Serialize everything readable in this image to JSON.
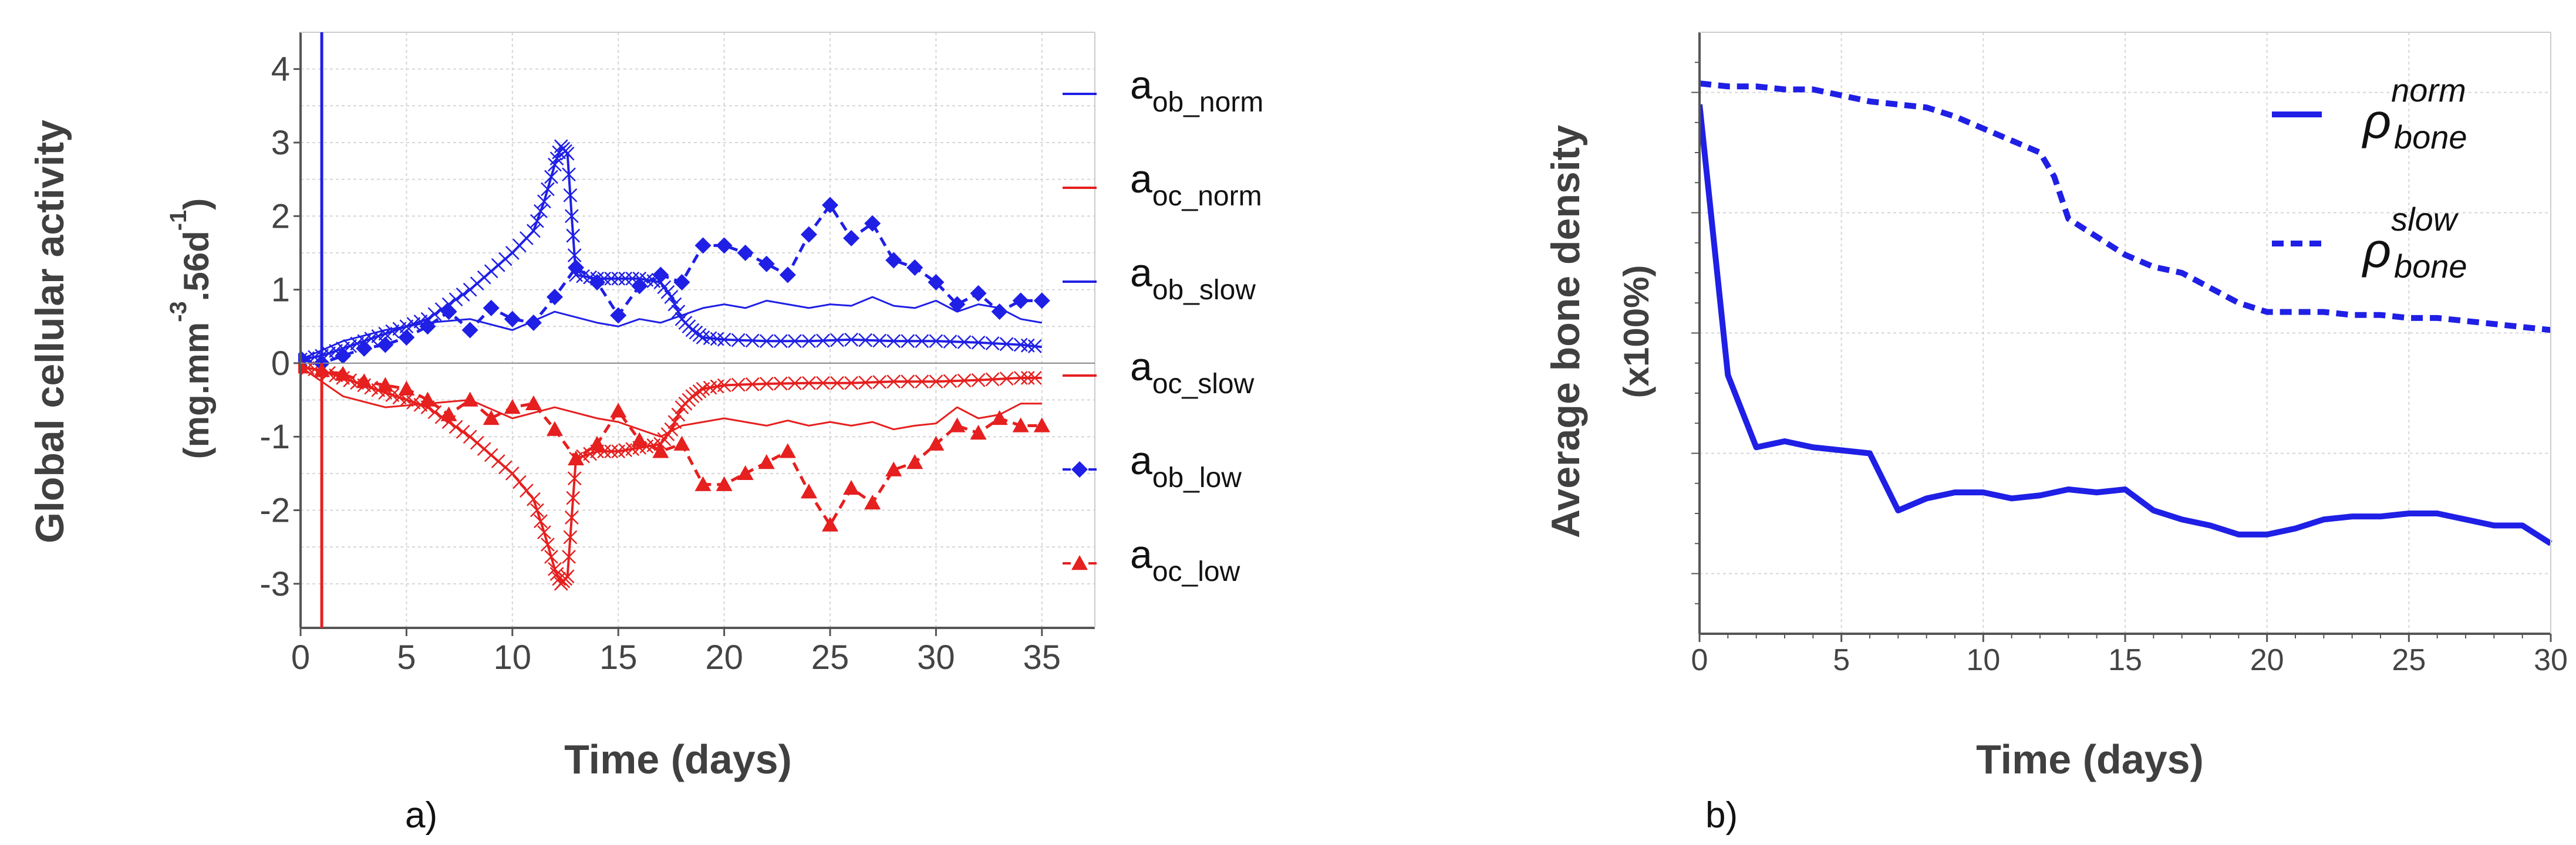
{
  "chart_data": [
    {
      "type": "line",
      "panel_label": "a)",
      "xlabel": "Time (days)",
      "ylabel": "Global cellular activity",
      "ylabel_units": "(mg.mm-3.56d-1)",
      "ylabel_units_parts": {
        "open": "(mg.mm",
        "exp1": "-3",
        "mid": ".56d",
        "exp2": "-1",
        "close": ")"
      },
      "xlim": [
        0,
        37.5
      ],
      "ylim": [
        -3.6,
        4.5
      ],
      "xticks": [
        "0",
        "5",
        "10",
        "15",
        "20",
        "25",
        "30",
        "35"
      ],
      "yticks": [
        "-3",
        "-2",
        "-1",
        "0",
        "1",
        "2",
        "3",
        "4"
      ],
      "grid": true,
      "legend_position": "right",
      "series": [
        {
          "name": "a_ob_norm",
          "label_base": "a",
          "label_sub": "ob_norm",
          "color": "#1f1fe6",
          "style": "thin",
          "marker": "none",
          "x": [
            0,
            2,
            4,
            6,
            8,
            10,
            12,
            14,
            15,
            16,
            17,
            18,
            19,
            20,
            21,
            22,
            23,
            24,
            25,
            26,
            27,
            28,
            29,
            30,
            31,
            32,
            33,
            34,
            35
          ],
          "y": [
            0.05,
            0.3,
            0.45,
            0.55,
            0.6,
            0.45,
            0.7,
            0.55,
            0.5,
            0.6,
            0.55,
            0.65,
            0.75,
            0.8,
            0.75,
            0.85,
            0.8,
            0.75,
            0.8,
            0.78,
            0.9,
            0.78,
            0.75,
            0.85,
            0.7,
            0.8,
            0.75,
            0.6,
            0.55
          ]
        },
        {
          "name": "a_oc_norm",
          "label_base": "a",
          "label_sub": "oc_norm",
          "color": "#e61f1f",
          "style": "thin",
          "marker": "none",
          "x": [
            0,
            2,
            4,
            6,
            8,
            10,
            12,
            14,
            15,
            16,
            17,
            18,
            19,
            20,
            21,
            22,
            23,
            24,
            25,
            26,
            27,
            28,
            29,
            30,
            31,
            32,
            33,
            34,
            35
          ],
          "y": [
            -0.05,
            -0.45,
            -0.6,
            -0.55,
            -0.5,
            -0.75,
            -0.6,
            -0.75,
            -0.8,
            -0.9,
            -1.0,
            -0.85,
            -0.8,
            -0.75,
            -0.8,
            -0.85,
            -0.78,
            -0.85,
            -0.8,
            -0.85,
            -0.8,
            -0.9,
            -0.85,
            -0.82,
            -0.6,
            -0.75,
            -0.7,
            -0.55,
            -0.55
          ]
        },
        {
          "name": "a_ob_slow",
          "label_base": "a",
          "label_sub": "ob_slow",
          "color": "#1f1fe6",
          "style": "solid",
          "marker": "cross",
          "x": [
            0,
            1,
            2,
            3,
            4,
            5,
            6,
            7,
            8,
            9,
            10,
            11,
            11.5,
            12,
            12.3,
            12.6,
            12.8,
            13,
            14,
            15,
            16,
            17,
            17.5,
            18,
            18.5,
            19,
            20,
            22,
            24,
            26,
            28,
            30,
            32,
            34,
            35
          ],
          "y": [
            0.05,
            0.1,
            0.2,
            0.3,
            0.4,
            0.5,
            0.6,
            0.8,
            1.0,
            1.25,
            1.5,
            1.8,
            2.2,
            2.7,
            2.95,
            2.85,
            2.0,
            1.2,
            1.15,
            1.15,
            1.15,
            1.1,
            0.9,
            0.6,
            0.45,
            0.35,
            0.32,
            0.3,
            0.3,
            0.32,
            0.3,
            0.3,
            0.28,
            0.25,
            0.22
          ]
        },
        {
          "name": "a_oc_slow",
          "label_base": "a",
          "label_sub": "oc_slow",
          "color": "#e61f1f",
          "style": "solid",
          "marker": "cross",
          "x": [
            0,
            1,
            2,
            3,
            4,
            5,
            6,
            7,
            8,
            9,
            10,
            11,
            11.5,
            12,
            12.3,
            12.6,
            12.8,
            13,
            14,
            15,
            16,
            17,
            17.5,
            18,
            18.5,
            19,
            20,
            22,
            24,
            26,
            28,
            30,
            32,
            34,
            35
          ],
          "y": [
            -0.05,
            -0.1,
            -0.2,
            -0.3,
            -0.4,
            -0.5,
            -0.6,
            -0.8,
            -1.0,
            -1.25,
            -1.5,
            -1.85,
            -2.3,
            -2.8,
            -3.0,
            -2.9,
            -2.1,
            -1.3,
            -1.2,
            -1.2,
            -1.15,
            -1.1,
            -0.9,
            -0.6,
            -0.45,
            -0.35,
            -0.3,
            -0.28,
            -0.27,
            -0.27,
            -0.25,
            -0.25,
            -0.23,
            -0.2,
            -0.2
          ]
        },
        {
          "name": "a_ob_low",
          "label_base": "a",
          "label_sub": "ob_low",
          "color": "#1f1fe6",
          "style": "dashed",
          "marker": "diamond",
          "x": [
            0,
            1,
            2,
            3,
            4,
            5,
            6,
            7,
            8,
            9,
            10,
            11,
            12,
            13,
            14,
            15,
            16,
            17,
            18,
            19,
            20,
            21,
            22,
            23,
            24,
            25,
            26,
            27,
            28,
            29,
            30,
            31,
            32,
            33,
            34,
            35
          ],
          "y": [
            0.05,
            0.0,
            0.1,
            0.2,
            0.25,
            0.35,
            0.5,
            0.7,
            0.45,
            0.75,
            0.6,
            0.55,
            0.9,
            1.3,
            1.1,
            0.65,
            1.05,
            1.2,
            1.1,
            1.6,
            1.6,
            1.5,
            1.35,
            1.2,
            1.75,
            2.15,
            1.7,
            1.9,
            1.4,
            1.3,
            1.1,
            0.8,
            0.95,
            0.7,
            0.85,
            0.85
          ]
        },
        {
          "name": "a_oc_low",
          "label_base": "a",
          "label_sub": "oc_low",
          "color": "#e61f1f",
          "style": "dashed",
          "marker": "triangle",
          "x": [
            0,
            1,
            2,
            3,
            4,
            5,
            6,
            7,
            8,
            9,
            10,
            11,
            12,
            13,
            14,
            15,
            16,
            17,
            18,
            19,
            20,
            21,
            22,
            23,
            24,
            25,
            26,
            27,
            28,
            29,
            30,
            31,
            32,
            33,
            34,
            35
          ],
          "y": [
            -0.05,
            -0.1,
            -0.15,
            -0.25,
            -0.3,
            -0.35,
            -0.5,
            -0.7,
            -0.5,
            -0.75,
            -0.6,
            -0.55,
            -0.9,
            -1.3,
            -1.1,
            -0.65,
            -1.05,
            -1.2,
            -1.1,
            -1.65,
            -1.65,
            -1.5,
            -1.35,
            -1.2,
            -1.75,
            -2.2,
            -1.7,
            -1.9,
            -1.45,
            -1.35,
            -1.1,
            -0.85,
            -0.95,
            -0.75,
            -0.85,
            -0.85
          ]
        }
      ]
    },
    {
      "type": "line",
      "panel_label": "b)",
      "xlabel": "Time (days)",
      "ylabel": "Average bone density",
      "ylabel_units": "(x100%)",
      "xlim": [
        0,
        30
      ],
      "ylim": [
        0,
        1
      ],
      "xticks": [
        "0",
        "5",
        "10",
        "15",
        "20",
        "25",
        "30"
      ],
      "grid": true,
      "legend_position": "top-right",
      "series": [
        {
          "name": "rho_bone_norm",
          "label_base": "ρ",
          "label_sub": "bone",
          "label_sup": "norm",
          "color": "#1f1fe6",
          "style": "solid",
          "x": [
            0,
            1,
            2,
            3,
            4,
            5,
            6,
            7,
            8,
            9,
            10,
            11,
            12,
            13,
            14,
            15,
            16,
            17,
            18,
            19,
            20,
            21,
            22,
            23,
            24,
            25,
            26,
            27,
            28,
            29,
            30
          ],
          "y": [
            0.88,
            0.43,
            0.31,
            0.32,
            0.31,
            0.305,
            0.3,
            0.205,
            0.225,
            0.235,
            0.235,
            0.225,
            0.23,
            0.24,
            0.235,
            0.24,
            0.205,
            0.19,
            0.18,
            0.165,
            0.165,
            0.175,
            0.19,
            0.195,
            0.195,
            0.2,
            0.2,
            0.19,
            0.18,
            0.18,
            0.15
          ]
        },
        {
          "name": "rho_bone_slow",
          "label_base": "ρ",
          "label_sub": "bone",
          "label_sup": "slow",
          "color": "#1f1fe6",
          "style": "dashed",
          "x": [
            0,
            1,
            2,
            3,
            4,
            5,
            6,
            7,
            8,
            9,
            10,
            11,
            12,
            12.5,
            13,
            14,
            15,
            16,
            17,
            18,
            19,
            20,
            21,
            22,
            23,
            24,
            25,
            26,
            27,
            28,
            29,
            30
          ],
          "y": [
            0.915,
            0.91,
            0.91,
            0.905,
            0.905,
            0.895,
            0.885,
            0.88,
            0.875,
            0.86,
            0.84,
            0.82,
            0.8,
            0.76,
            0.69,
            0.66,
            0.63,
            0.61,
            0.6,
            0.575,
            0.55,
            0.535,
            0.535,
            0.535,
            0.53,
            0.53,
            0.525,
            0.525,
            0.52,
            0.515,
            0.51,
            0.505
          ]
        }
      ]
    }
  ]
}
